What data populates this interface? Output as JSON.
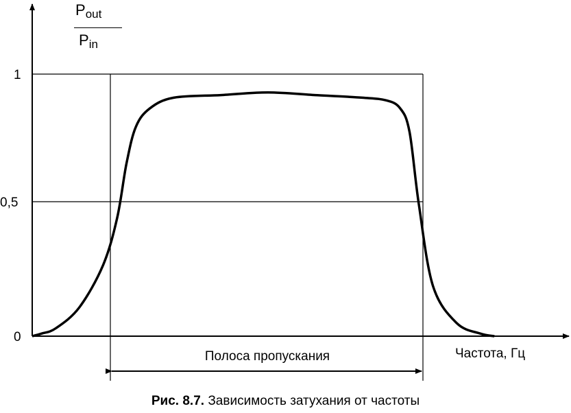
{
  "chart_data": {
    "type": "line",
    "ylabel": {
      "numerator": "P",
      "numerator_sub": "out",
      "denominator": "P",
      "denominator_sub": "in"
    },
    "xlabel": "Частота, Гц",
    "yticks": [
      "1",
      "0,5",
      "0"
    ],
    "ylim": [
      0,
      1
    ],
    "grid": false,
    "band_label": "Полоса пропускания",
    "caption_prefix": "Рис. 8.7.",
    "caption_text": "Зависимость затухания от частоты",
    "series": [
      {
        "x": [
          0.0,
          0.02,
          0.05,
          0.1,
          0.15,
          0.18,
          0.2,
          0.22,
          0.25,
          0.3,
          0.4,
          0.5,
          0.6,
          0.7,
          0.75,
          0.78,
          0.8,
          0.82,
          0.85,
          0.9,
          0.95,
          0.98
        ],
        "values": [
          0.0,
          0.01,
          0.03,
          0.11,
          0.27,
          0.45,
          0.66,
          0.8,
          0.87,
          0.91,
          0.92,
          0.93,
          0.92,
          0.91,
          0.9,
          0.87,
          0.78,
          0.5,
          0.19,
          0.05,
          0.01,
          0.0
        ]
      }
    ],
    "passband": [
      0.2,
      0.82
    ]
  }
}
